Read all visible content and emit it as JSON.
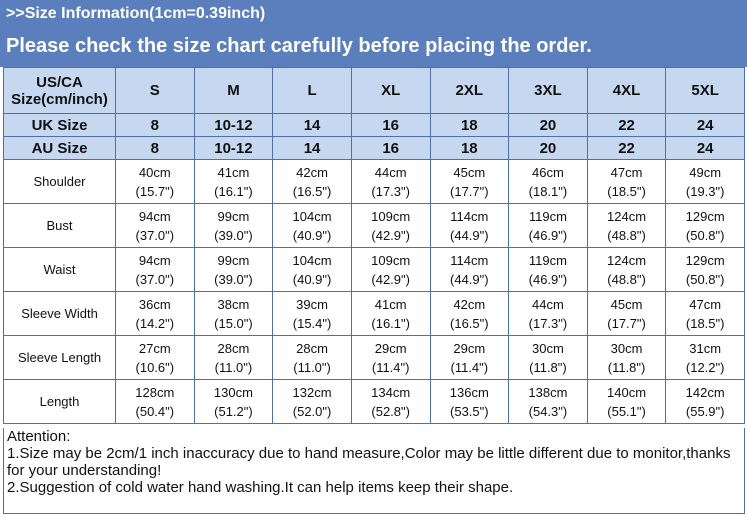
{
  "banner_info": ">>Size Information(1cm=0.39inch)",
  "banner_check": "Please check the size chart carefully before placing the order.",
  "header": {
    "label_line1": "US/CA",
    "label_line2": "Size(cm/inch)",
    "sizes": [
      "S",
      "M",
      "L",
      "XL",
      "2XL",
      "3XL",
      "4XL",
      "5XL"
    ]
  },
  "uk": {
    "label": "UK Size",
    "values": [
      "8",
      "10-12",
      "14",
      "16",
      "18",
      "20",
      "22",
      "24"
    ]
  },
  "au": {
    "label": "AU Size",
    "values": [
      "8",
      "10-12",
      "14",
      "16",
      "18",
      "20",
      "22",
      "24"
    ]
  },
  "rows": [
    {
      "label": "Shoulder",
      "cm": [
        "40cm",
        "41cm",
        "42cm",
        "44cm",
        "45cm",
        "46cm",
        "47cm",
        "49cm"
      ],
      "inch": [
        "(15.7\")",
        "(16.1\")",
        "(16.5\")",
        "(17.3\")",
        "(17.7\")",
        "(18.1\")",
        "(18.5\")",
        "(19.3\")"
      ]
    },
    {
      "label": "Bust",
      "cm": [
        "94cm",
        "99cm",
        "104cm",
        "109cm",
        "114cm",
        "119cm",
        "124cm",
        "129cm"
      ],
      "inch": [
        "(37.0\")",
        "(39.0\")",
        "(40.9\")",
        "(42.9\")",
        "(44.9\")",
        "(46.9\")",
        "(48.8\")",
        "(50.8\")"
      ]
    },
    {
      "label": "Waist",
      "cm": [
        "94cm",
        "99cm",
        "104cm",
        "109cm",
        "114cm",
        "119cm",
        "124cm",
        "129cm"
      ],
      "inch": [
        "(37.0\")",
        "(39.0\")",
        "(40.9\")",
        "(42.9\")",
        "(44.9\")",
        "(46.9\")",
        "(48.8\")",
        "(50.8\")"
      ]
    },
    {
      "label": "Sleeve Width",
      "cm": [
        "36cm",
        "38cm",
        "39cm",
        "41cm",
        "42cm",
        "44cm",
        "45cm",
        "47cm"
      ],
      "inch": [
        "(14.2\")",
        "(15.0\")",
        "(15.4\")",
        "(16.1\")",
        "(16.5\")",
        "(17.3\")",
        "(17.7\")",
        "(18.5\")"
      ]
    },
    {
      "label": "Sleeve Length",
      "cm": [
        "27cm",
        "28cm",
        "28cm",
        "29cm",
        "29cm",
        "30cm",
        "30cm",
        "31cm"
      ],
      "inch": [
        "(10.6\")",
        "(11.0\")",
        "(11.0\")",
        "(11.4\")",
        "(11.4\")",
        "(11.8\")",
        "(11.8\")",
        "(12.2\")"
      ]
    },
    {
      "label": "Length",
      "cm": [
        "128cm",
        "130cm",
        "132cm",
        "134cm",
        "136cm",
        "138cm",
        "140cm",
        "142cm"
      ],
      "inch": [
        "(50.4\")",
        "(51.2\")",
        "(52.0\")",
        "(52.8\")",
        "(53.5\")",
        "(54.3\")",
        "(55.1\")",
        "(55.9\")"
      ]
    }
  ],
  "notes": {
    "title": "Attention:",
    "line1": "1.Size may be 2cm/1 inch inaccuracy due to hand measure,Color may be little different due to monitor,thanks for your understanding!",
    "line2": "2.Suggestion of cold water hand washing.It can help items keep their shape."
  }
}
